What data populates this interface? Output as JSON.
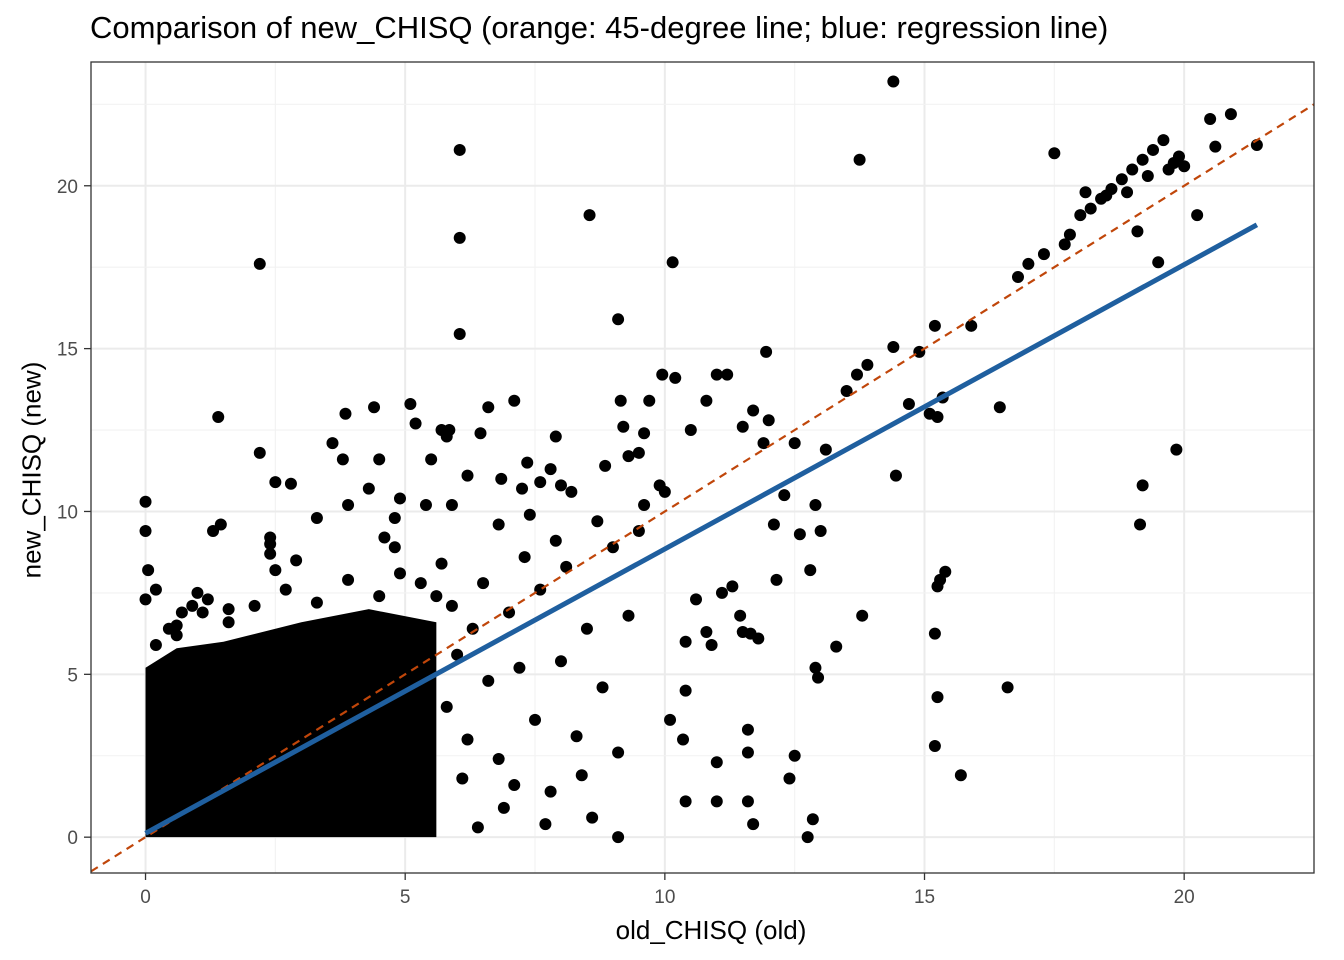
{
  "chart_data": {
    "type": "scatter",
    "title": "Comparison of new_CHISQ (orange: 45-degree line; blue: regression line)",
    "xlabel": "old_CHISQ (old)",
    "ylabel": "new_CHISQ (new)",
    "xlim": [
      -1.05,
      22.5
    ],
    "ylim": [
      -1.1,
      23.8
    ],
    "xticks": [
      0,
      5,
      10,
      15,
      20
    ],
    "yticks": [
      0,
      5,
      10,
      15,
      20
    ],
    "grid": true,
    "colors": {
      "points": "#000000",
      "identity_line": "#c0460a",
      "regression_line": "#1f5f9f",
      "grid": "#ebebeb",
      "border": "#333333"
    },
    "identity_line": {
      "slope": 1,
      "intercept": 0,
      "style": "dashed"
    },
    "regression_line": {
      "x": [
        0,
        21.4
      ],
      "y": [
        0.12,
        18.8
      ]
    },
    "dense_cloud": {
      "x_range": [
        0,
        5.6
      ],
      "y_range": [
        0,
        7.0
      ]
    },
    "points": [
      [
        0.0,
        10.3
      ],
      [
        0.0,
        9.4
      ],
      [
        0.05,
        8.2
      ],
      [
        0.0,
        7.3
      ],
      [
        0.2,
        7.6
      ],
      [
        0.45,
        6.4
      ],
      [
        0.6,
        6.5
      ],
      [
        0.7,
        6.9
      ],
      [
        0.9,
        7.1
      ],
      [
        1.0,
        7.5
      ],
      [
        1.2,
        7.3
      ],
      [
        1.4,
        12.9
      ],
      [
        1.3,
        9.4
      ],
      [
        1.45,
        9.6
      ],
      [
        1.6,
        7.0
      ],
      [
        2.2,
        11.8
      ],
      [
        2.2,
        17.6
      ],
      [
        2.4,
        9.2
      ],
      [
        2.5,
        8.2
      ],
      [
        2.4,
        8.7
      ],
      [
        2.4,
        9.0
      ],
      [
        2.5,
        10.9
      ],
      [
        2.8,
        10.85
      ],
      [
        2.9,
        8.5
      ],
      [
        3.3,
        9.8
      ],
      [
        3.6,
        12.1
      ],
      [
        3.8,
        11.6
      ],
      [
        3.85,
        13.0
      ],
      [
        3.9,
        10.2
      ],
      [
        4.3,
        10.7
      ],
      [
        4.4,
        13.2
      ],
      [
        4.5,
        11.6
      ],
      [
        4.6,
        9.2
      ],
      [
        4.8,
        9.8
      ],
      [
        4.9,
        10.4
      ],
      [
        5.1,
        13.3
      ],
      [
        5.2,
        12.7
      ],
      [
        5.4,
        10.2
      ],
      [
        5.5,
        11.6
      ],
      [
        5.7,
        12.5
      ],
      [
        5.8,
        12.3
      ],
      [
        5.85,
        12.5
      ],
      [
        5.9,
        10.2
      ],
      [
        6.05,
        21.1
      ],
      [
        6.05,
        18.4
      ],
      [
        6.05,
        15.45
      ],
      [
        6.2,
        11.1
      ],
      [
        6.45,
        12.4
      ],
      [
        6.6,
        13.2
      ],
      [
        6.85,
        11.0
      ],
      [
        7.1,
        13.4
      ],
      [
        7.25,
        10.7
      ],
      [
        7.35,
        11.5
      ],
      [
        7.6,
        10.9
      ],
      [
        7.8,
        11.3
      ],
      [
        7.9,
        12.3
      ],
      [
        8.0,
        10.8
      ],
      [
        8.2,
        10.6
      ],
      [
        8.55,
        19.1
      ],
      [
        8.85,
        11.4
      ],
      [
        9.1,
        15.9
      ],
      [
        9.15,
        13.4
      ],
      [
        9.2,
        12.6
      ],
      [
        9.3,
        11.7
      ],
      [
        9.5,
        11.8
      ],
      [
        9.6,
        12.4
      ],
      [
        9.7,
        13.4
      ],
      [
        9.9,
        10.8
      ],
      [
        9.95,
        14.2
      ],
      [
        10.2,
        14.1
      ],
      [
        10.15,
        17.65
      ],
      [
        10.5,
        12.5
      ],
      [
        10.8,
        13.4
      ],
      [
        11.0,
        14.2
      ],
      [
        11.2,
        14.2
      ],
      [
        11.5,
        12.6
      ],
      [
        11.7,
        13.1
      ],
      [
        11.9,
        12.1
      ],
      [
        11.95,
        14.9
      ],
      [
        12.0,
        12.8
      ],
      [
        12.1,
        9.6
      ],
      [
        12.15,
        7.9
      ],
      [
        12.3,
        10.5
      ],
      [
        12.5,
        12.1
      ],
      [
        12.6,
        9.3
      ],
      [
        12.8,
        8.2
      ],
      [
        12.9,
        10.2
      ],
      [
        13.0,
        9.4
      ],
      [
        13.1,
        11.9
      ],
      [
        13.3,
        5.85
      ],
      [
        13.5,
        13.7
      ],
      [
        13.7,
        14.2
      ],
      [
        13.9,
        14.5
      ],
      [
        13.75,
        20.8
      ],
      [
        14.4,
        15.05
      ],
      [
        14.4,
        23.2
      ],
      [
        14.45,
        11.1
      ],
      [
        14.7,
        13.3
      ],
      [
        14.9,
        14.9
      ],
      [
        15.1,
        13.0
      ],
      [
        15.2,
        15.7
      ],
      [
        15.25,
        12.9
      ],
      [
        15.35,
        13.5
      ],
      [
        15.2,
        6.25
      ],
      [
        15.25,
        7.7
      ],
      [
        15.3,
        7.9
      ],
      [
        15.4,
        8.15
      ],
      [
        15.25,
        4.3
      ],
      [
        15.2,
        2.8
      ],
      [
        15.7,
        1.9
      ],
      [
        15.9,
        15.7
      ],
      [
        16.45,
        13.2
      ],
      [
        16.6,
        4.6
      ],
      [
        13.8,
        6.8
      ],
      [
        12.9,
        5.2
      ],
      [
        12.95,
        4.9
      ],
      [
        12.5,
        2.5
      ],
      [
        12.4,
        1.8
      ],
      [
        12.75,
        0.0
      ],
      [
        12.85,
        0.55
      ],
      [
        11.7,
        0.4
      ],
      [
        11.6,
        1.1
      ],
      [
        11.6,
        2.6
      ],
      [
        11.6,
        3.3
      ],
      [
        11.0,
        1.1
      ],
      [
        10.4,
        1.1
      ],
      [
        9.1,
        0.0
      ],
      [
        11.0,
        2.3
      ],
      [
        10.4,
        4.5
      ],
      [
        10.1,
        3.6
      ],
      [
        10.35,
        3.0
      ],
      [
        11.5,
        6.3
      ],
      [
        11.65,
        6.25
      ],
      [
        11.45,
        6.8
      ],
      [
        11.8,
        6.1
      ],
      [
        10.9,
        5.9
      ],
      [
        10.8,
        6.3
      ],
      [
        10.4,
        6.0
      ],
      [
        10.6,
        7.3
      ],
      [
        11.1,
        7.5
      ],
      [
        11.3,
        7.7
      ],
      [
        16.8,
        17.2
      ],
      [
        17.0,
        17.6
      ],
      [
        17.3,
        17.9
      ],
      [
        17.5,
        21.0
      ],
      [
        17.7,
        18.2
      ],
      [
        17.8,
        18.5
      ],
      [
        18.0,
        19.1
      ],
      [
        18.2,
        19.3
      ],
      [
        18.4,
        19.6
      ],
      [
        18.6,
        19.9
      ],
      [
        18.8,
        20.2
      ],
      [
        19.0,
        20.5
      ],
      [
        19.2,
        20.8
      ],
      [
        19.4,
        21.1
      ],
      [
        19.6,
        21.4
      ],
      [
        19.8,
        20.7
      ],
      [
        19.9,
        20.9
      ],
      [
        20.0,
        20.6
      ],
      [
        19.1,
        18.6
      ],
      [
        19.5,
        17.65
      ],
      [
        20.25,
        19.1
      ],
      [
        20.5,
        22.05
      ],
      [
        20.6,
        21.2
      ],
      [
        20.9,
        22.2
      ],
      [
        21.4,
        21.25
      ],
      [
        19.15,
        9.6
      ],
      [
        19.2,
        10.8
      ],
      [
        19.85,
        11.9
      ],
      [
        18.1,
        19.8
      ],
      [
        18.5,
        19.7
      ],
      [
        18.9,
        19.8
      ],
      [
        19.3,
        20.3
      ],
      [
        19.7,
        20.5
      ]
    ]
  }
}
